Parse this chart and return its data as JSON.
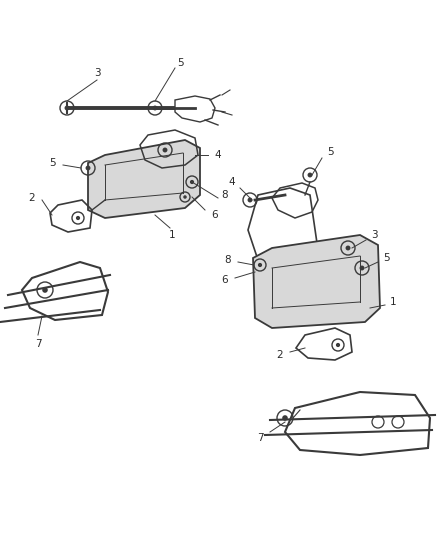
{
  "background_color": "#ffffff",
  "line_color": "#3a3a3a",
  "text_color": "#2a2a2a",
  "fig_width": 4.38,
  "fig_height": 5.33,
  "dpi": 100
}
